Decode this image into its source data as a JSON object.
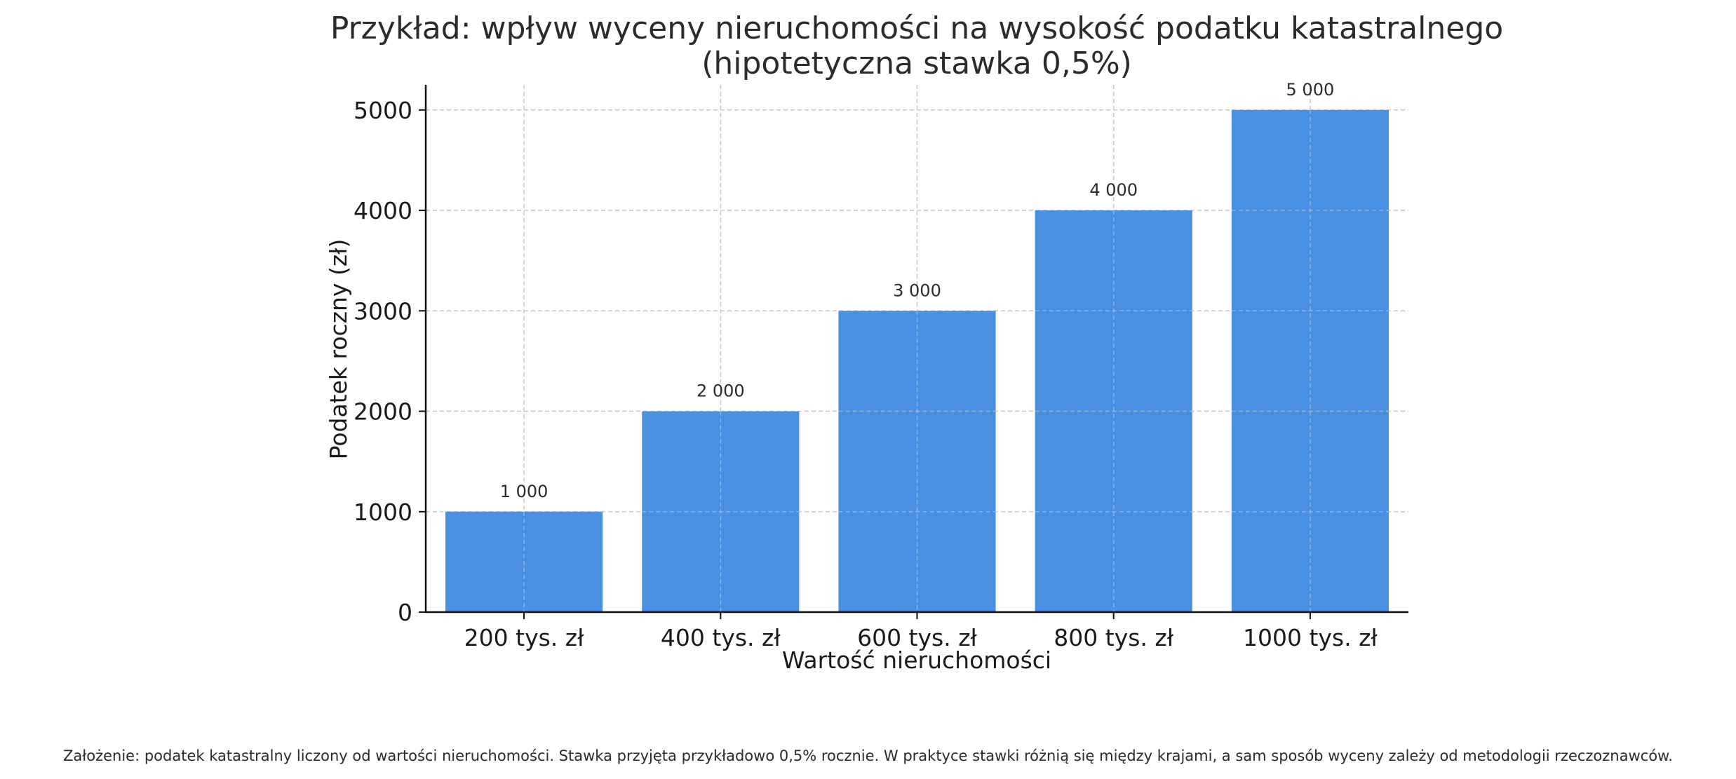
{
  "chart_data": {
    "type": "bar",
    "title": [
      "Przykład: wpływ wyceny nieruchomości na wysokość podatku katastralnego",
      "(hipotetyczna stawka 0,5%)"
    ],
    "categories": [
      "200 tys. zł",
      "400 tys. zł",
      "600 tys. zł",
      "800 tys. zł",
      "1000 tys. zł"
    ],
    "values": [
      1000,
      2000,
      3000,
      4000,
      5000
    ],
    "data_labels": [
      "1 000",
      "2 000",
      "3 000",
      "4 000",
      "5 000"
    ],
    "xlabel": "Wartość nieruchomości",
    "ylabel": "Podatek roczny (zł)",
    "ylim": [
      0,
      5250
    ],
    "yticks": [
      0,
      1000,
      2000,
      3000,
      4000,
      5000
    ],
    "grid": true,
    "bar_color": "#4a90e2"
  },
  "footnote": "Założenie: podatek katastralny liczony od wartości nieruchomości. Stawka przyjęta przykładowo 0,5% rocznie. W praktyce stawki różnią się między krajami, a sam sposób wyceny zależy od metodologii rzeczoznawców."
}
